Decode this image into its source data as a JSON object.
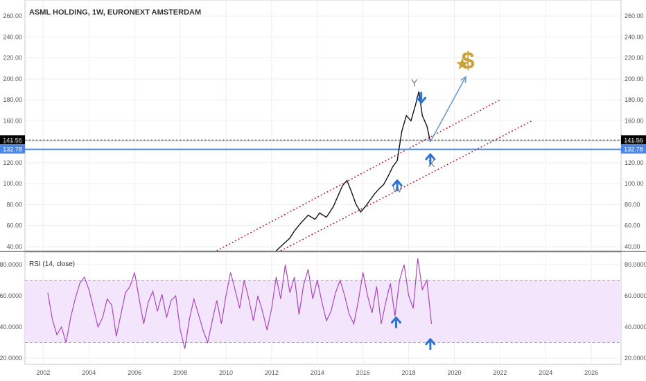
{
  "chart_data": [
    {
      "type": "line",
      "title": "ASML HOLDING, 1W, EURONEXT AMSTERDAM",
      "xlabel": "",
      "ylabel": "",
      "xlim": [
        2001.2,
        2027.3
      ],
      "ylim": [
        36,
        270
      ],
      "xticks": [
        "2002",
        "2004",
        "2006",
        "2008",
        "2010",
        "2012",
        "2014",
        "2016",
        "2018",
        "2020",
        "2022",
        "2024",
        "2026"
      ],
      "yticks": [
        "40.00",
        "60.00",
        "80.00",
        "100.00",
        "120.00",
        "140.00",
        "160.00",
        "180.00",
        "200.00",
        "220.00",
        "240.00",
        "260.00"
      ],
      "grid": true,
      "series": [
        {
          "x": [
            2012.2,
            2012.5,
            2012.8,
            2013.0,
            2013.3,
            2013.6,
            2013.9,
            2014.1,
            2014.4,
            2014.7,
            2014.9,
            2015.1,
            2015.3,
            2015.5,
            2015.7,
            2015.9,
            2016.1,
            2016.3,
            2016.5,
            2016.7,
            2016.9,
            2017.1,
            2017.3,
            2017.5,
            2017.7,
            2017.9,
            2018.1,
            2018.3,
            2018.45,
            2018.6,
            2018.8,
            2018.95
          ],
          "y": [
            36,
            42,
            48,
            55,
            63,
            70,
            66,
            72,
            68,
            78,
            88,
            98,
            103,
            92,
            80,
            73,
            78,
            84,
            90,
            95,
            99,
            107,
            116,
            122,
            150,
            165,
            160,
            175,
            188,
            165,
            155,
            140
          ]
        }
      ],
      "hlines": [
        {
          "label": "141.56",
          "value": 141.56,
          "color": "#000000",
          "style": "dotted"
        },
        {
          "label": "132.78",
          "value": 132.78,
          "color": "#4a86e8",
          "style": "solid"
        }
      ],
      "trendlines": [
        {
          "from": [
            2009.6,
            36
          ],
          "to": [
            2022.0,
            180
          ],
          "color": "#b22a3d",
          "style": "dotted"
        },
        {
          "from": [
            2012.4,
            36
          ],
          "to": [
            2023.4,
            160
          ],
          "color": "#b22a3d",
          "style": "dotted"
        }
      ],
      "projection": {
        "from": [
          2018.95,
          140
        ],
        "to": [
          2020.5,
          202
        ],
        "color": "#6a9bd8"
      },
      "annotations": [
        {
          "text": "Y",
          "x": 2018.25,
          "y": 193
        },
        {
          "text": "W",
          "x": 2017.5,
          "y": 92
        },
        {
          "text": "X",
          "x": 2019.0,
          "y": 116
        },
        {
          "text": "$",
          "x": 2020.6,
          "y": 210
        }
      ]
    },
    {
      "type": "line",
      "title": "RSI (14, close)",
      "xlim": [
        2001.2,
        2027.3
      ],
      "ylim": [
        16,
        88
      ],
      "yticks": [
        "20.0000",
        "40.0000",
        "60.0000",
        "80.0000"
      ],
      "band": [
        30,
        70
      ],
      "series": [
        {
          "x": [
            2002.2,
            2002.4,
            2002.6,
            2002.8,
            2003.0,
            2003.2,
            2003.4,
            2003.6,
            2003.8,
            2004.0,
            2004.2,
            2004.4,
            2004.6,
            2004.8,
            2005.0,
            2005.2,
            2005.4,
            2005.6,
            2005.8,
            2006.0,
            2006.2,
            2006.4,
            2006.6,
            2006.8,
            2007.0,
            2007.2,
            2007.4,
            2007.6,
            2007.8,
            2008.0,
            2008.2,
            2008.4,
            2008.6,
            2008.8,
            2009.0,
            2009.2,
            2009.4,
            2009.6,
            2009.8,
            2010.0,
            2010.2,
            2010.4,
            2010.6,
            2010.8,
            2011.0,
            2011.2,
            2011.4,
            2011.6,
            2011.8,
            2012.0,
            2012.2,
            2012.4,
            2012.6,
            2012.8,
            2013.0,
            2013.2,
            2013.4,
            2013.6,
            2013.8,
            2014.0,
            2014.2,
            2014.4,
            2014.6,
            2014.8,
            2015.0,
            2015.2,
            2015.4,
            2015.6,
            2015.8,
            2016.0,
            2016.2,
            2016.4,
            2016.6,
            2016.8,
            2017.0,
            2017.2,
            2017.4,
            2017.6,
            2017.8,
            2018.0,
            2018.2,
            2018.4,
            2018.6,
            2018.8,
            2019.0
          ],
          "y": [
            62,
            45,
            35,
            40,
            30,
            46,
            58,
            68,
            72,
            64,
            52,
            40,
            46,
            58,
            54,
            34,
            48,
            62,
            66,
            75,
            58,
            42,
            56,
            63,
            50,
            61,
            46,
            57,
            60,
            38,
            26,
            45,
            58,
            48,
            38,
            30,
            44,
            57,
            42,
            60,
            75,
            64,
            52,
            70,
            58,
            44,
            60,
            50,
            38,
            52,
            72,
            58,
            80,
            62,
            72,
            48,
            67,
            77,
            58,
            70,
            56,
            44,
            50,
            62,
            70,
            60,
            48,
            42,
            57,
            75,
            60,
            49,
            66,
            42,
            56,
            68,
            47,
            70,
            80,
            60,
            52,
            84,
            64,
            70,
            42
          ]
        }
      ]
    }
  ]
}
